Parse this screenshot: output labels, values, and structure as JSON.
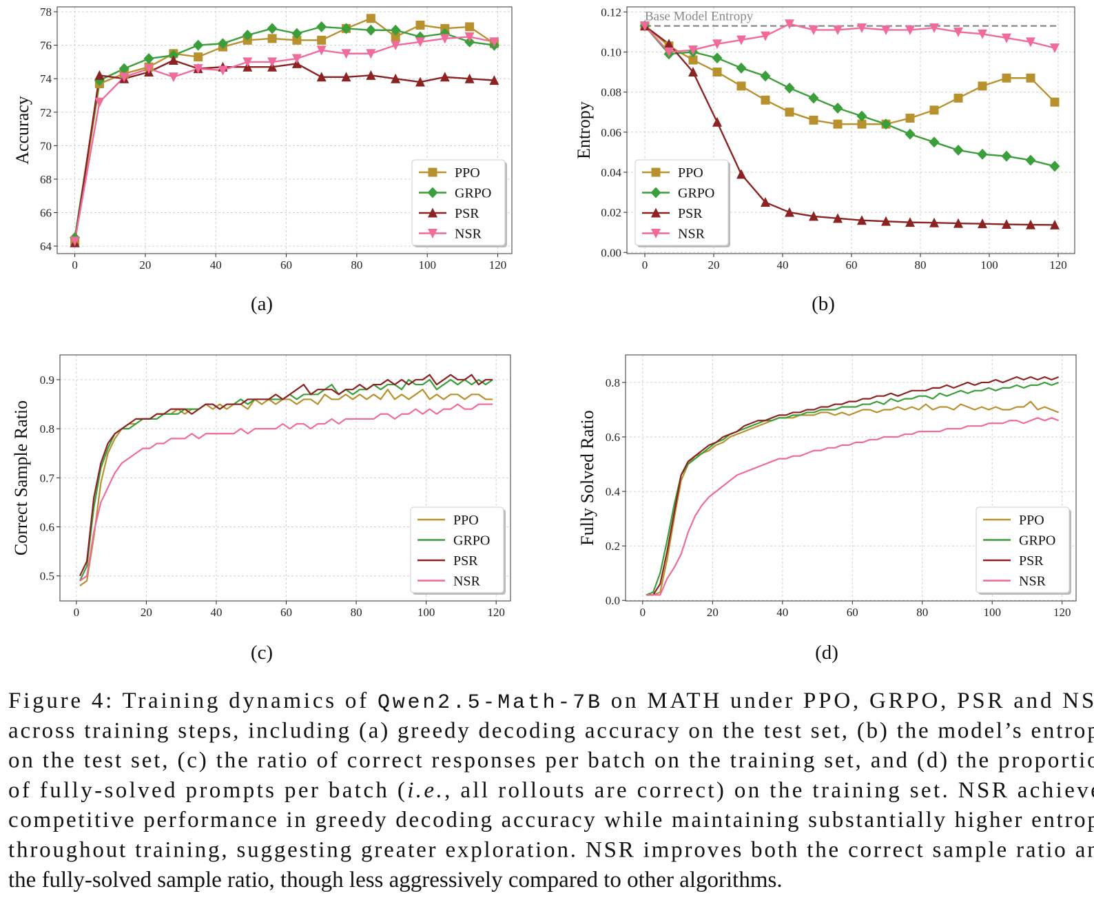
{
  "chart_data": [
    {
      "type": "line",
      "label": "(a)",
      "ylabel": "Accuracy",
      "xlim": [
        -5,
        124
      ],
      "ylim": [
        63.55,
        78.29
      ],
      "xticks": [
        0,
        20,
        40,
        60,
        80,
        100,
        120
      ],
      "yticks": [
        64,
        66,
        68,
        70,
        72,
        74,
        76,
        78
      ],
      "grid": true,
      "legend": "lower right",
      "x": [
        0,
        7,
        14,
        21,
        28,
        35,
        42,
        49,
        56,
        63,
        70,
        77,
        84,
        91,
        98,
        105,
        112,
        119
      ],
      "series": [
        {
          "name": "PPO",
          "color": "#b8912f",
          "marker": "s",
          "values": [
            64.3,
            73.7,
            74.3,
            74.7,
            75.5,
            75.3,
            75.9,
            76.3,
            76.4,
            76.3,
            76.3,
            77.0,
            77.6,
            76.5,
            77.2,
            77.0,
            77.1,
            76.1
          ]
        },
        {
          "name": "GRPO",
          "color": "#3a9e3a",
          "marker": "D",
          "values": [
            64.5,
            73.9,
            74.6,
            75.2,
            75.4,
            76.0,
            76.1,
            76.6,
            77.0,
            76.7,
            77.1,
            77.0,
            76.9,
            76.9,
            76.5,
            76.7,
            76.2,
            76.0
          ]
        },
        {
          "name": "PSR",
          "color": "#8b2323",
          "marker": "^",
          "values": [
            64.2,
            74.2,
            74.0,
            74.4,
            75.1,
            74.6,
            74.7,
            74.7,
            74.7,
            74.9,
            74.1,
            74.1,
            74.2,
            74.0,
            73.8,
            74.1,
            74.0,
            73.9
          ]
        },
        {
          "name": "NSR",
          "color": "#f06a9c",
          "marker": "v",
          "values": [
            64.3,
            72.6,
            74.1,
            74.6,
            74.1,
            74.6,
            74.5,
            75.0,
            75.0,
            75.2,
            75.7,
            75.5,
            75.5,
            76.0,
            76.2,
            76.4,
            76.5,
            76.2
          ]
        }
      ]
    },
    {
      "type": "line",
      "label": "(b)",
      "ylabel": "Entropy",
      "xlim": [
        -5.2,
        124.8
      ],
      "ylim": [
        -0.0006,
        0.1225
      ],
      "xticks": [
        0,
        20,
        40,
        60,
        80,
        100,
        120
      ],
      "yticks": [
        {
          "value": 0,
          "label": "0.00"
        },
        {
          "value": 0.02,
          "label": "0.02"
        },
        {
          "value": 0.04,
          "label": "0.04"
        },
        {
          "value": 0.06,
          "label": "0.06"
        },
        {
          "value": 0.08,
          "label": "0.08"
        },
        {
          "value": 0.1,
          "label": "0.10"
        },
        {
          "value": 0.12,
          "label": "0.12"
        }
      ],
      "grid": true,
      "legend": "lower left",
      "hline": {
        "value": 0.113,
        "label": "Base Model Entropy",
        "color": "#888888",
        "xlim": [
          0,
          120
        ]
      },
      "x": [
        0,
        7,
        14,
        21,
        28,
        35,
        42,
        49,
        56,
        63,
        70,
        77,
        84,
        91,
        98,
        105,
        112,
        119
      ],
      "series": [
        {
          "name": "PPO",
          "color": "#b8912f",
          "marker": "s",
          "values": [
            0.113,
            0.103,
            0.096,
            0.09,
            0.083,
            0.076,
            0.07,
            0.066,
            0.064,
            0.064,
            0.064,
            0.067,
            0.071,
            0.077,
            0.083,
            0.087,
            0.087,
            0.075
          ]
        },
        {
          "name": "GRPO",
          "color": "#3a9e3a",
          "marker": "D",
          "values": [
            0.113,
            0.099,
            0.1,
            0.097,
            0.092,
            0.088,
            0.082,
            0.077,
            0.072,
            0.068,
            0.064,
            0.059,
            0.055,
            0.051,
            0.049,
            0.048,
            0.046,
            0.043
          ]
        },
        {
          "name": "PSR",
          "color": "#8b2323",
          "marker": "^",
          "values": [
            0.113,
            0.104,
            0.09,
            0.065,
            0.039,
            0.025,
            0.02,
            0.018,
            0.017,
            0.016,
            0.0155,
            0.015,
            0.0148,
            0.0145,
            0.0143,
            0.014,
            0.0138,
            0.0137
          ]
        },
        {
          "name": "NSR",
          "color": "#f06a9c",
          "marker": "v",
          "values": [
            0.113,
            0.1,
            0.101,
            0.104,
            0.106,
            0.108,
            0.114,
            0.111,
            0.111,
            0.112,
            0.111,
            0.111,
            0.112,
            0.11,
            0.109,
            0.107,
            0.105,
            0.102
          ]
        }
      ]
    },
    {
      "type": "line",
      "label": "(c)",
      "ylabel": "Correct Sample Ratio",
      "xlim": [
        -4.7,
        124.1
      ],
      "ylim": [
        0.449,
        0.9505
      ],
      "xticks": [
        0,
        20,
        40,
        60,
        80,
        100,
        120
      ],
      "yticks": [
        0.5,
        0.6,
        0.7,
        0.8,
        0.9
      ],
      "grid": true,
      "legend": "lower right",
      "x": [
        1,
        3,
        5,
        7,
        9,
        11,
        13,
        15,
        17,
        19,
        21,
        23,
        25,
        27,
        29,
        31,
        33,
        35,
        37,
        39,
        41,
        43,
        45,
        47,
        49,
        51,
        53,
        55,
        57,
        59,
        61,
        63,
        65,
        67,
        69,
        71,
        73,
        75,
        77,
        79,
        81,
        83,
        85,
        87,
        89,
        91,
        93,
        95,
        97,
        99,
        101,
        103,
        105,
        107,
        109,
        111,
        113,
        115,
        117,
        119
      ],
      "series": [
        {
          "name": "PPO",
          "color": "#b8912f",
          "values": [
            0.48,
            0.49,
            0.58,
            0.69,
            0.75,
            0.78,
            0.8,
            0.81,
            0.81,
            0.82,
            0.82,
            0.83,
            0.83,
            0.83,
            0.84,
            0.83,
            0.84,
            0.84,
            0.85,
            0.84,
            0.85,
            0.84,
            0.85,
            0.85,
            0.84,
            0.86,
            0.85,
            0.86,
            0.85,
            0.86,
            0.86,
            0.85,
            0.86,
            0.86,
            0.85,
            0.87,
            0.86,
            0.86,
            0.87,
            0.86,
            0.87,
            0.86,
            0.87,
            0.86,
            0.88,
            0.86,
            0.87,
            0.86,
            0.87,
            0.88,
            0.86,
            0.87,
            0.86,
            0.87,
            0.87,
            0.86,
            0.87,
            0.87,
            0.86,
            0.86
          ]
        },
        {
          "name": "GRPO",
          "color": "#3a9e3a",
          "values": [
            0.49,
            0.52,
            0.64,
            0.72,
            0.76,
            0.79,
            0.8,
            0.8,
            0.81,
            0.82,
            0.82,
            0.82,
            0.83,
            0.83,
            0.83,
            0.84,
            0.84,
            0.84,
            0.85,
            0.85,
            0.84,
            0.85,
            0.85,
            0.86,
            0.85,
            0.86,
            0.86,
            0.86,
            0.86,
            0.86,
            0.87,
            0.86,
            0.87,
            0.87,
            0.87,
            0.88,
            0.89,
            0.87,
            0.88,
            0.87,
            0.88,
            0.88,
            0.89,
            0.88,
            0.89,
            0.89,
            0.88,
            0.9,
            0.89,
            0.89,
            0.9,
            0.88,
            0.89,
            0.9,
            0.89,
            0.9,
            0.89,
            0.9,
            0.89,
            0.9
          ]
        },
        {
          "name": "PSR",
          "color": "#8b2323",
          "values": [
            0.5,
            0.53,
            0.66,
            0.73,
            0.77,
            0.79,
            0.8,
            0.81,
            0.82,
            0.82,
            0.82,
            0.83,
            0.83,
            0.84,
            0.84,
            0.84,
            0.83,
            0.84,
            0.85,
            0.85,
            0.84,
            0.85,
            0.85,
            0.85,
            0.86,
            0.86,
            0.86,
            0.86,
            0.87,
            0.86,
            0.87,
            0.88,
            0.89,
            0.87,
            0.88,
            0.88,
            0.88,
            0.87,
            0.88,
            0.88,
            0.89,
            0.88,
            0.89,
            0.89,
            0.9,
            0.89,
            0.9,
            0.89,
            0.9,
            0.9,
            0.91,
            0.89,
            0.9,
            0.91,
            0.9,
            0.9,
            0.91,
            0.89,
            0.9,
            0.9
          ]
        },
        {
          "name": "NSR",
          "color": "#f06a9c",
          "values": [
            0.49,
            0.5,
            0.59,
            0.65,
            0.68,
            0.71,
            0.73,
            0.74,
            0.75,
            0.76,
            0.76,
            0.77,
            0.77,
            0.78,
            0.78,
            0.78,
            0.79,
            0.78,
            0.79,
            0.79,
            0.79,
            0.79,
            0.79,
            0.8,
            0.79,
            0.8,
            0.8,
            0.8,
            0.8,
            0.81,
            0.8,
            0.81,
            0.81,
            0.8,
            0.81,
            0.81,
            0.82,
            0.81,
            0.82,
            0.82,
            0.82,
            0.82,
            0.82,
            0.83,
            0.83,
            0.82,
            0.83,
            0.83,
            0.84,
            0.83,
            0.84,
            0.83,
            0.84,
            0.84,
            0.85,
            0.84,
            0.84,
            0.85,
            0.85,
            0.85
          ]
        }
      ]
    },
    {
      "type": "line",
      "label": "(d)",
      "ylabel": "Fully Solved Ratio",
      "xlim": [
        -4.9,
        124
      ],
      "ylim": [
        -0.002,
        0.901
      ],
      "xticks": [
        0,
        20,
        40,
        60,
        80,
        100,
        120
      ],
      "yticks": [
        {
          "value": 0,
          "label": "0.0"
        },
        0.2,
        0.4,
        0.6,
        0.8
      ],
      "grid": true,
      "legend": "lower right",
      "x": [
        1,
        3,
        5,
        7,
        9,
        11,
        13,
        15,
        17,
        19,
        21,
        23,
        25,
        27,
        29,
        31,
        33,
        35,
        37,
        39,
        41,
        43,
        45,
        47,
        49,
        51,
        53,
        55,
        57,
        59,
        61,
        63,
        65,
        67,
        69,
        71,
        73,
        75,
        77,
        79,
        81,
        83,
        85,
        87,
        89,
        91,
        93,
        95,
        97,
        99,
        101,
        103,
        105,
        107,
        109,
        111,
        113,
        115,
        117,
        119
      ],
      "series": [
        {
          "name": "PPO",
          "color": "#b8912f",
          "values": [
            0.02,
            0.02,
            0.03,
            0.15,
            0.3,
            0.44,
            0.5,
            0.53,
            0.54,
            0.55,
            0.57,
            0.58,
            0.6,
            0.61,
            0.62,
            0.63,
            0.64,
            0.65,
            0.66,
            0.67,
            0.67,
            0.67,
            0.68,
            0.68,
            0.68,
            0.69,
            0.69,
            0.68,
            0.69,
            0.68,
            0.69,
            0.7,
            0.7,
            0.69,
            0.7,
            0.7,
            0.71,
            0.7,
            0.71,
            0.7,
            0.72,
            0.7,
            0.71,
            0.71,
            0.7,
            0.72,
            0.71,
            0.7,
            0.71,
            0.7,
            0.71,
            0.7,
            0.7,
            0.71,
            0.71,
            0.73,
            0.7,
            0.71,
            0.7,
            0.69
          ]
        },
        {
          "name": "GRPO",
          "color": "#3a9e3a",
          "values": [
            0.02,
            0.03,
            0.1,
            0.22,
            0.35,
            0.46,
            0.5,
            0.52,
            0.54,
            0.56,
            0.58,
            0.59,
            0.61,
            0.62,
            0.63,
            0.64,
            0.65,
            0.66,
            0.66,
            0.67,
            0.67,
            0.68,
            0.68,
            0.69,
            0.69,
            0.7,
            0.7,
            0.7,
            0.71,
            0.71,
            0.71,
            0.72,
            0.72,
            0.73,
            0.72,
            0.74,
            0.73,
            0.74,
            0.74,
            0.75,
            0.75,
            0.74,
            0.76,
            0.75,
            0.76,
            0.77,
            0.76,
            0.77,
            0.77,
            0.78,
            0.77,
            0.78,
            0.78,
            0.79,
            0.78,
            0.79,
            0.79,
            0.8,
            0.79,
            0.8
          ]
        },
        {
          "name": "PSR",
          "color": "#8b2323",
          "values": [
            0.02,
            0.02,
            0.06,
            0.18,
            0.32,
            0.46,
            0.51,
            0.53,
            0.55,
            0.57,
            0.58,
            0.6,
            0.61,
            0.62,
            0.64,
            0.65,
            0.66,
            0.66,
            0.67,
            0.68,
            0.68,
            0.69,
            0.69,
            0.7,
            0.7,
            0.71,
            0.71,
            0.72,
            0.72,
            0.73,
            0.73,
            0.74,
            0.74,
            0.75,
            0.75,
            0.76,
            0.75,
            0.76,
            0.77,
            0.77,
            0.77,
            0.78,
            0.78,
            0.79,
            0.78,
            0.79,
            0.8,
            0.79,
            0.8,
            0.8,
            0.81,
            0.8,
            0.81,
            0.82,
            0.81,
            0.82,
            0.81,
            0.82,
            0.81,
            0.82
          ]
        },
        {
          "name": "NSR",
          "color": "#f06a9c",
          "values": [
            0.02,
            0.02,
            0.02,
            0.08,
            0.12,
            0.17,
            0.25,
            0.31,
            0.35,
            0.38,
            0.4,
            0.42,
            0.44,
            0.46,
            0.47,
            0.48,
            0.49,
            0.5,
            0.51,
            0.52,
            0.52,
            0.53,
            0.53,
            0.54,
            0.55,
            0.55,
            0.56,
            0.56,
            0.57,
            0.57,
            0.58,
            0.58,
            0.59,
            0.59,
            0.6,
            0.6,
            0.6,
            0.61,
            0.61,
            0.62,
            0.62,
            0.62,
            0.62,
            0.63,
            0.63,
            0.63,
            0.64,
            0.64,
            0.64,
            0.65,
            0.65,
            0.65,
            0.66,
            0.66,
            0.65,
            0.66,
            0.67,
            0.66,
            0.67,
            0.66
          ]
        }
      ]
    }
  ],
  "caption": {
    "lines": [
      [
        "Figure 4: Training dynamics of ",
        "Qwen2.5-Math-7B",
        " on MATH under PPO, GRPO, PSR and NSR"
      ],
      [
        "across training steps, including (a) greedy decoding accuracy on the test set, (b) the model’s entropy"
      ],
      [
        "on the test set, (c) the ratio of correct responses per batch on the training set, and (d) the proportion"
      ],
      [
        "of fully-solved prompts per batch (",
        "i.e.",
        ", all rollouts are correct) on the training set.  NSR achieves"
      ],
      [
        "competitive performance in greedy decoding accuracy while maintaining substantially higher entropy"
      ],
      [
        "throughout training, suggesting greater exploration. NSR improves both the correct sample ratio and"
      ],
      [
        "the fully-solved sample ratio, though less aggressively compared to other algorithms."
      ]
    ]
  }
}
